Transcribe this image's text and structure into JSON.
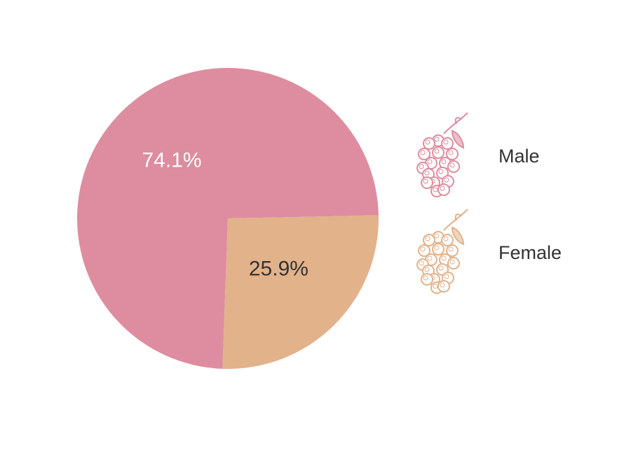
{
  "chart_data": {
    "type": "pie",
    "slices": [
      {
        "name": "Male",
        "value": 74.1,
        "label": "74.1%",
        "color": "#dd8d9f",
        "label_color": "#ffffff"
      },
      {
        "name": "Female",
        "value": 25.9,
        "label": "25.9%",
        "color": "#e2b28b",
        "label_color": "#333333"
      }
    ],
    "legend": {
      "placement": "right",
      "icon": "grape-bunch-icon",
      "items": [
        {
          "label": "Male",
          "color": "#dd8d9f"
        },
        {
          "label": "Female",
          "color": "#e2b28b"
        }
      ]
    }
  }
}
